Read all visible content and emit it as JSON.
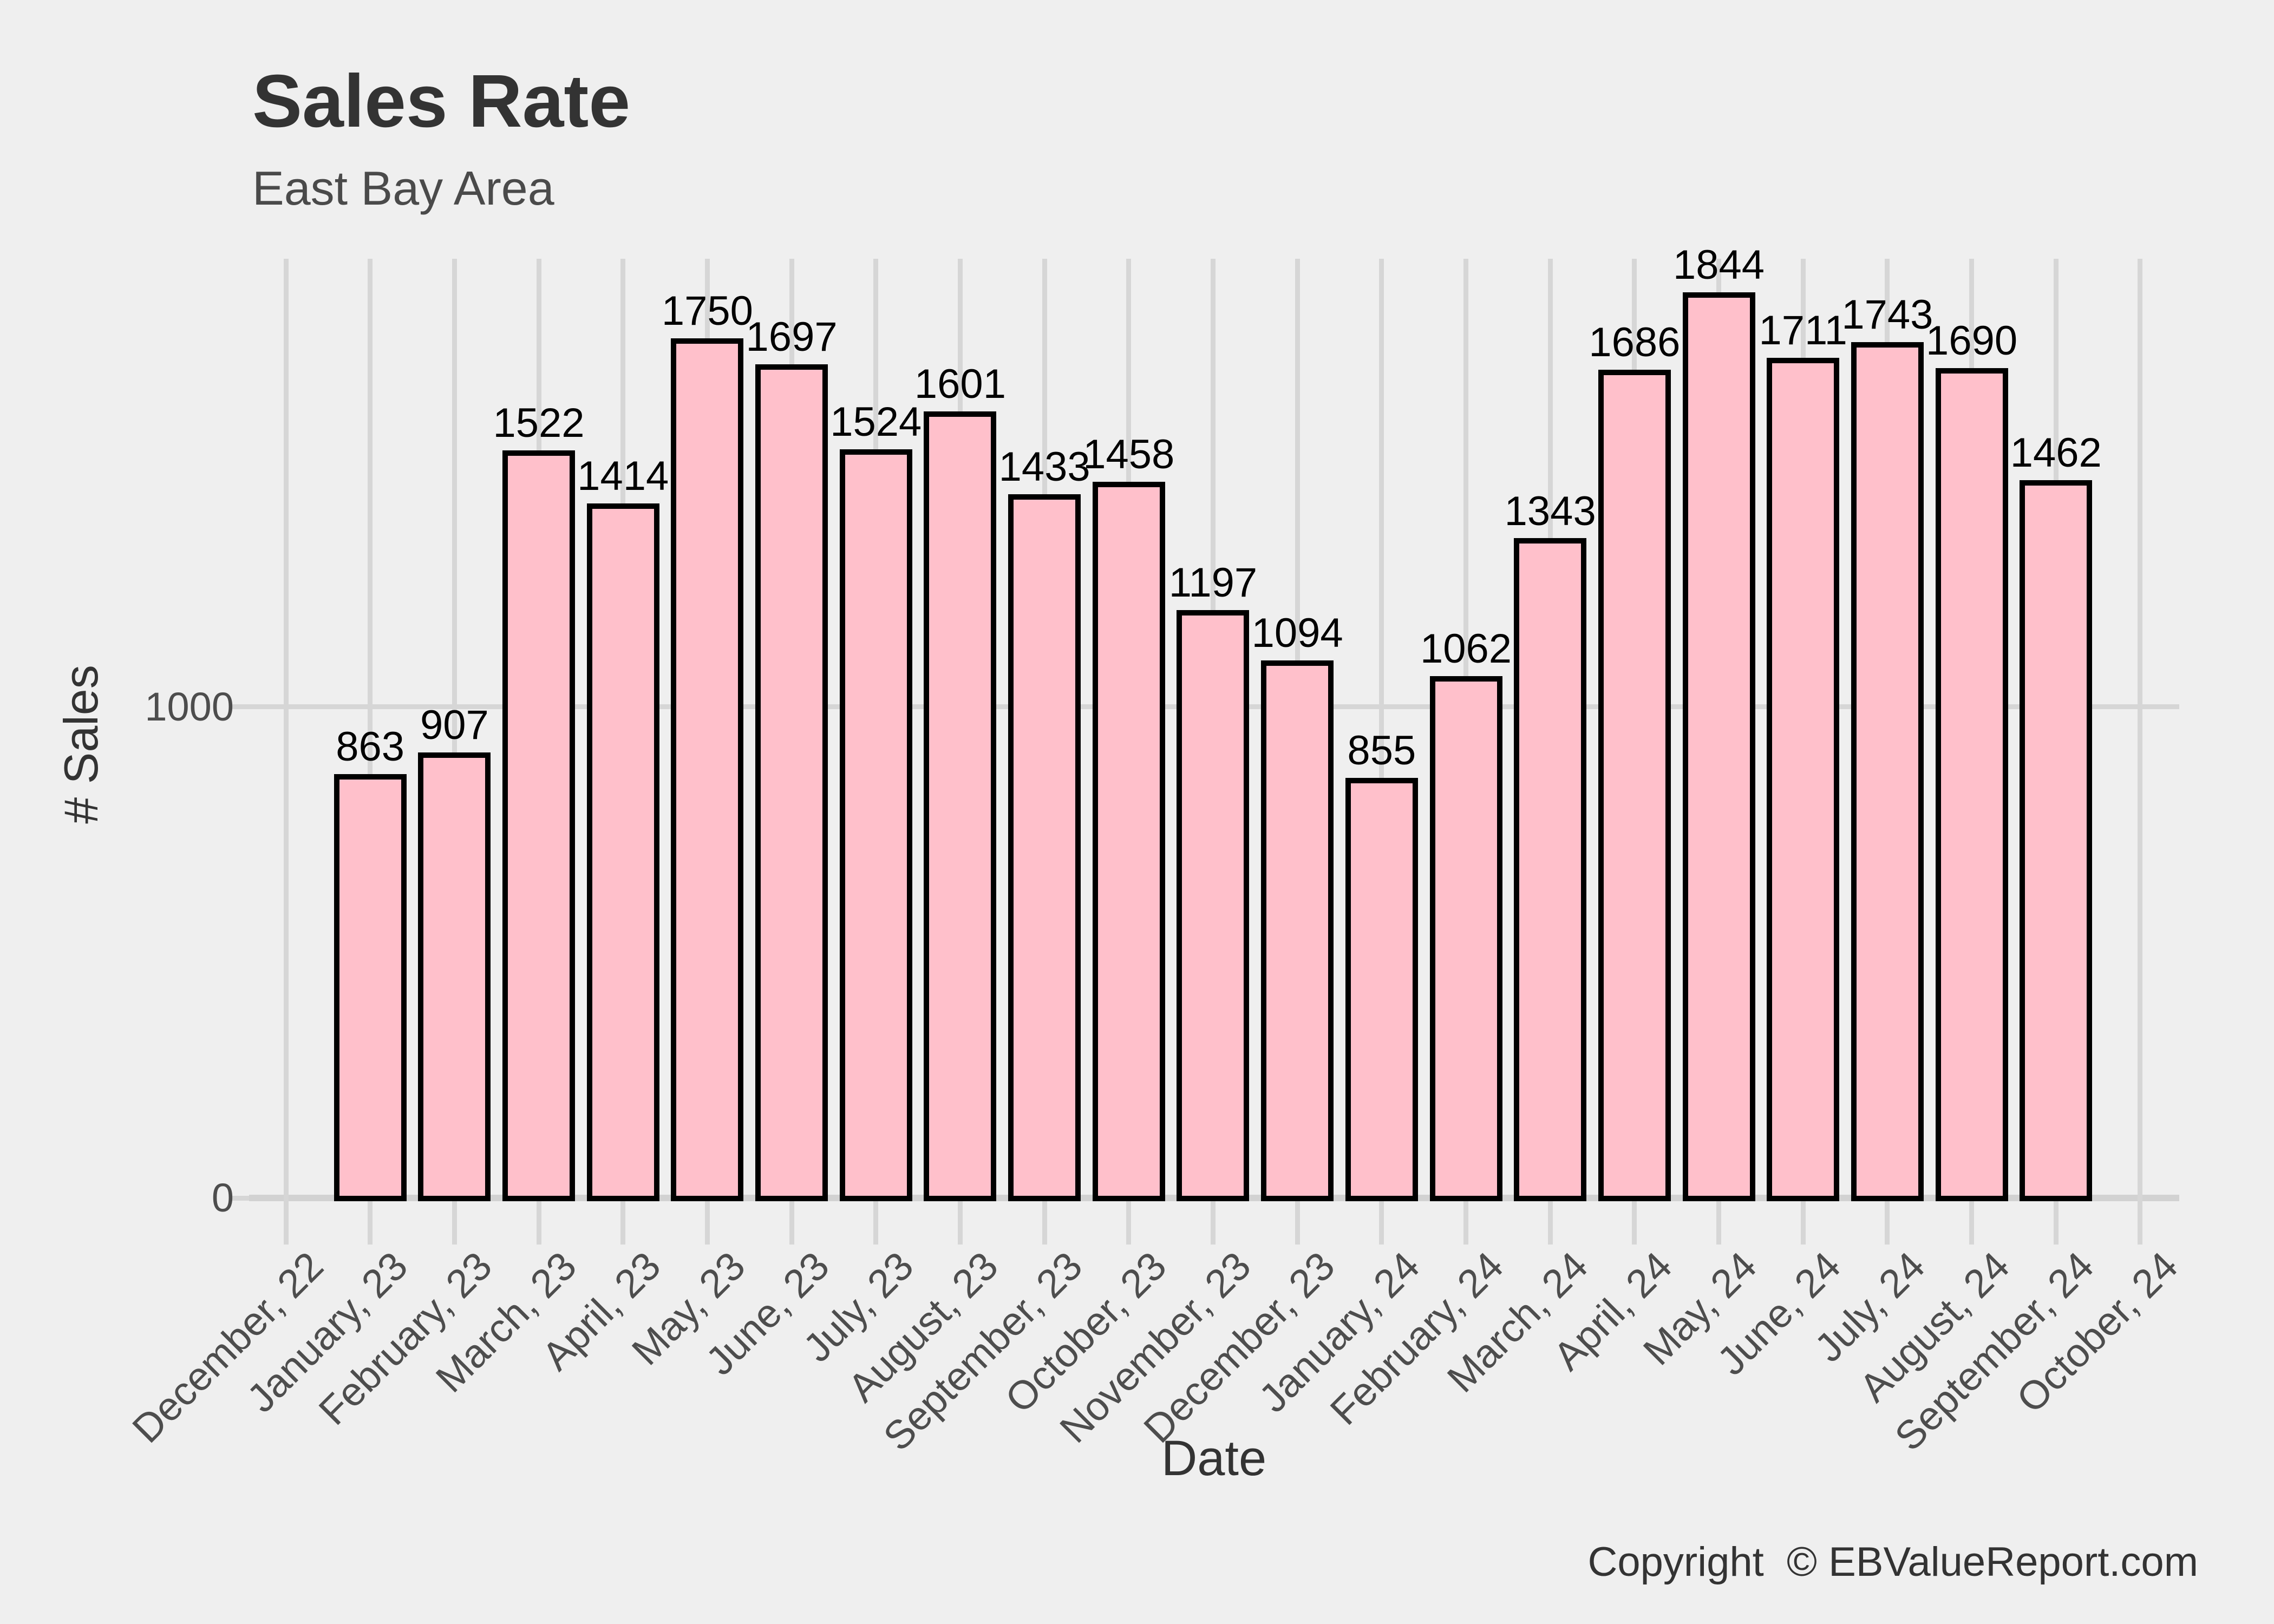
{
  "header": {
    "title": "Sales Rate",
    "subtitle": "East Bay Area"
  },
  "footer": {
    "copyright_text": "Copyright  © EBValueReport.com"
  },
  "chart_data": {
    "type": "bar",
    "title": "Sales Rate",
    "subtitle": "East Bay Area",
    "xlabel": "Date",
    "ylabel": "# Sales",
    "categories": [
      "December, 22",
      "January, 23",
      "February, 23",
      "March, 23",
      "April, 23",
      "May, 23",
      "June, 23",
      "July, 23",
      "August, 23",
      "September, 23",
      "October, 23",
      "November, 23",
      "December, 23",
      "January, 24",
      "February, 24",
      "March, 24",
      "April, 24",
      "May, 24",
      "June, 24",
      "July, 24",
      "August, 24",
      "September, 24",
      "October, 24"
    ],
    "values": [
      null,
      863,
      907,
      1522,
      1414,
      1750,
      1697,
      1524,
      1601,
      1433,
      1458,
      1197,
      1094,
      855,
      1062,
      1343,
      1686,
      1844,
      1711,
      1743,
      1690,
      1462,
      null
    ],
    "yticks": [
      0,
      1000
    ],
    "ylim": [
      0,
      1912
    ],
    "legend": "none",
    "grid": true,
    "bar_value_labels": [
      "863",
      "907",
      "1522",
      "1414",
      "1750",
      "1697",
      "1524",
      "1601",
      "1433",
      "1458",
      "1197",
      "1094",
      "855",
      "1062",
      "1343",
      "1686",
      "1844",
      "1711",
      "1743",
      "1690",
      "1462"
    ],
    "colors": {
      "bar_fill": "#ffc0cb",
      "bar_stroke": "#000000",
      "background": "#efefef",
      "gridline": "#d6d6d6",
      "axis_text": "#4d4d4d",
      "title_text": "#333333",
      "bar_label_text": "#000000"
    }
  }
}
